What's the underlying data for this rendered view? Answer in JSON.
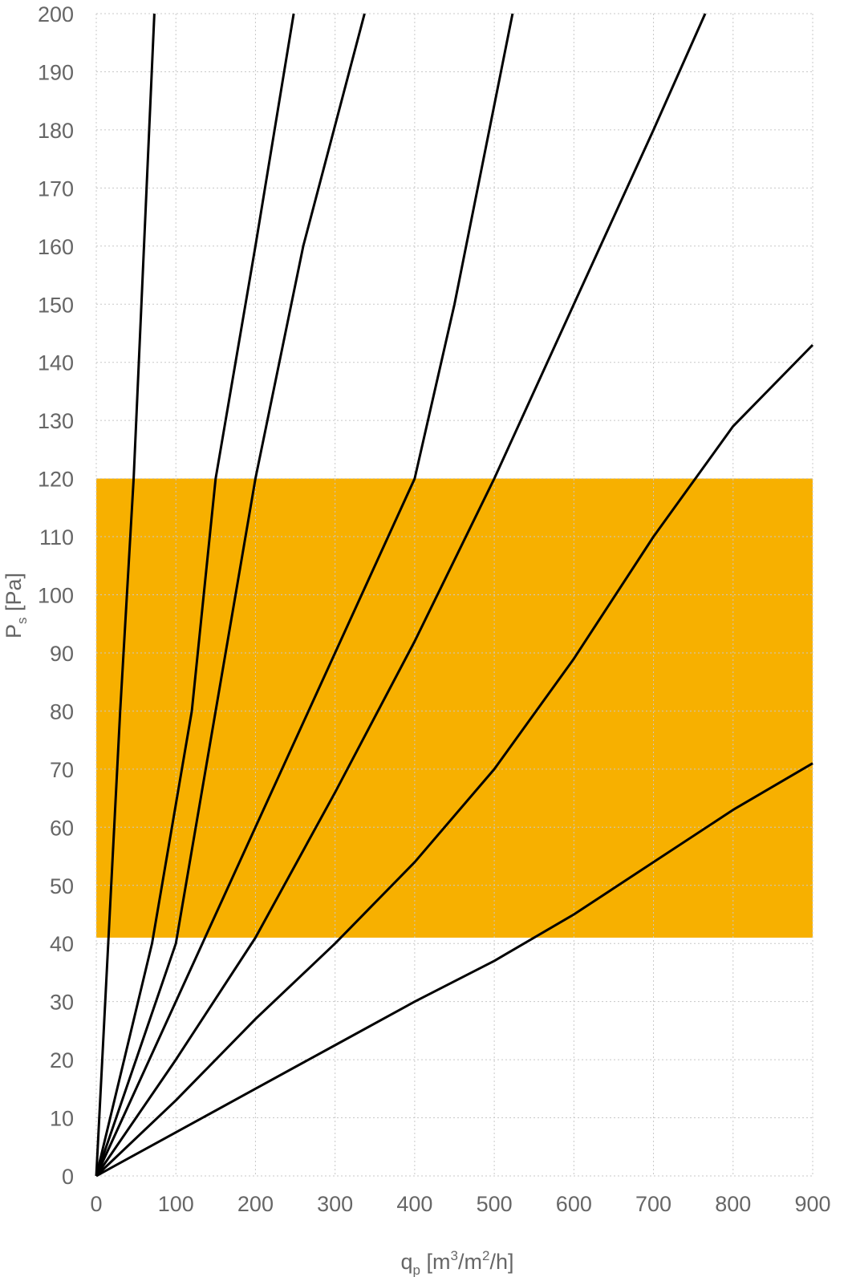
{
  "chart_data": {
    "type": "line",
    "xlabel": {
      "base": "q",
      "sub": "p",
      "pre": " [m",
      "sup1": "3",
      "mid": "/m",
      "sup2": "2",
      "post": "/h]"
    },
    "ylabel": {
      "base": "P",
      "sub": "s",
      "post": " [Pa]"
    },
    "xlim": [
      0,
      900
    ],
    "ylim": [
      0,
      200
    ],
    "x_ticks": [
      "0",
      "100",
      "200",
      "300",
      "400",
      "500",
      "600",
      "700",
      "800",
      "900"
    ],
    "y_ticks": [
      "0",
      "10",
      "20",
      "30",
      "40",
      "50",
      "60",
      "70",
      "80",
      "90",
      "100",
      "110",
      "120",
      "130",
      "140",
      "150",
      "160",
      "170",
      "180",
      "190",
      "200"
    ],
    "grid": true,
    "band": {
      "y_from": 41,
      "y_to": 120,
      "color": "#f7b000"
    },
    "line_color": "#000000",
    "series": [
      {
        "x": [
          0,
          30,
          47,
          73
        ],
        "y": [
          0,
          80,
          120,
          200
        ]
      },
      {
        "x": [
          0,
          70,
          120,
          150,
          200,
          248
        ],
        "y": [
          0,
          40,
          80,
          120,
          160,
          200
        ]
      },
      {
        "x": [
          0,
          100,
          200,
          260,
          337
        ],
        "y": [
          0,
          40,
          120,
          160,
          200
        ]
      },
      {
        "x": [
          0,
          200,
          300,
          400,
          450,
          523
        ],
        "y": [
          0,
          60,
          90,
          120,
          150,
          200
        ]
      },
      {
        "x": [
          0,
          100,
          200,
          300,
          400,
          500,
          600,
          700,
          765
        ],
        "y": [
          0,
          20,
          41,
          66,
          92,
          120,
          150,
          180,
          200
        ]
      },
      {
        "x": [
          0,
          100,
          200,
          300,
          400,
          500,
          600,
          700,
          800,
          900
        ],
        "y": [
          0,
          13,
          27,
          40,
          54,
          70,
          89,
          110,
          129,
          143
        ]
      },
      {
        "x": [
          0,
          100,
          200,
          300,
          400,
          500,
          600,
          700,
          800,
          900
        ],
        "y": [
          0,
          7.5,
          15,
          22.5,
          30,
          37,
          45,
          54,
          63,
          71
        ]
      }
    ]
  }
}
